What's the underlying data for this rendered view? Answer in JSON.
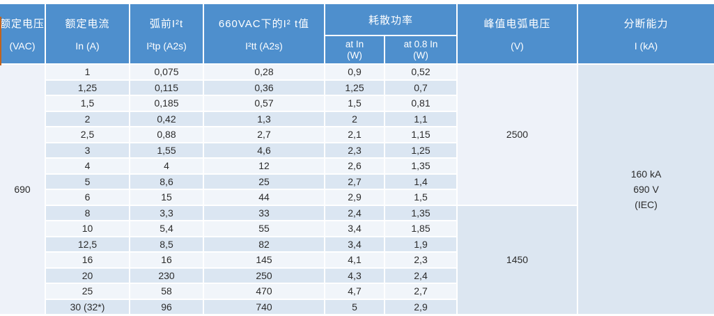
{
  "table": {
    "header": {
      "voltage": {
        "l1": "额定电压",
        "l2": "(VAC)"
      },
      "current": {
        "l1": "额定电流",
        "l2": "In (A)"
      },
      "prearc": {
        "l1": "弧前I²t",
        "l2": "I²tp (A2s)"
      },
      "total_i2t": {
        "l1": "660VAC下的I² t值",
        "l2": "I²tt (A2s)"
      },
      "power": {
        "title": "耗散功率",
        "sub1_l1": "at In",
        "sub1_l2": "(W)",
        "sub2_l1": "at 0.8 In",
        "sub2_l2": "(W)"
      },
      "peak": {
        "l1": "峰值电弧电压",
        "l2": "(V)"
      },
      "breaking": {
        "l1": "分断能力",
        "l2": "I (kA)"
      }
    },
    "merged": {
      "rated_voltage": "690",
      "peak_arc_voltage_group1": "2500",
      "peak_arc_voltage_group2": "1450",
      "breaking_l1": "160 kA",
      "breaking_l2": "690 V",
      "breaking_l3": "(IEC)"
    },
    "rows": [
      {
        "in": "1",
        "i2tp": "0,075",
        "i2tt": "0,28",
        "p_in": "0,9",
        "p_08": "0,52"
      },
      {
        "in": "1,25",
        "i2tp": "0,115",
        "i2tt": "0,36",
        "p_in": "1,25",
        "p_08": "0,7"
      },
      {
        "in": "1,5",
        "i2tp": "0,185",
        "i2tt": "0,57",
        "p_in": "1,5",
        "p_08": "0,81"
      },
      {
        "in": "2",
        "i2tp": "0,42",
        "i2tt": "1,3",
        "p_in": "2",
        "p_08": "1,1"
      },
      {
        "in": "2,5",
        "i2tp": "0,88",
        "i2tt": "2,7",
        "p_in": "2,1",
        "p_08": "1,15"
      },
      {
        "in": "3",
        "i2tp": "1,55",
        "i2tt": "4,6",
        "p_in": "2,3",
        "p_08": "1,25"
      },
      {
        "in": "4",
        "i2tp": "4",
        "i2tt": "12",
        "p_in": "2,6",
        "p_08": "1,35"
      },
      {
        "in": "5",
        "i2tp": "8,6",
        "i2tt": "25",
        "p_in": "2,7",
        "p_08": "1,4"
      },
      {
        "in": "6",
        "i2tp": "15",
        "i2tt": "44",
        "p_in": "2,9",
        "p_08": "1,5"
      },
      {
        "in": "8",
        "i2tp": "3,3",
        "i2tt": "33",
        "p_in": "2,4",
        "p_08": "1,35"
      },
      {
        "in": "10",
        "i2tp": "5,4",
        "i2tt": "55",
        "p_in": "3,4",
        "p_08": "1,85"
      },
      {
        "in": "12,5",
        "i2tp": "8,5",
        "i2tt": "82",
        "p_in": "3,4",
        "p_08": "1,9"
      },
      {
        "in": "16",
        "i2tp": "16",
        "i2tt": "145",
        "p_in": "4,1",
        "p_08": "2,3"
      },
      {
        "in": "20",
        "i2tp": "230",
        "i2tt": "250",
        "p_in": "4,3",
        "p_08": "2,4"
      },
      {
        "in": "25",
        "i2tp": "58",
        "i2tt": "470",
        "p_in": "4,7",
        "p_08": "2,7"
      },
      {
        "in": "30 (32*)",
        "i2tp": "96",
        "i2tt": "740",
        "p_in": "5",
        "p_08": "2,9"
      }
    ]
  },
  "colors": {
    "header_blue": "#4e8fcd",
    "row_light": "#f1f5fa",
    "row_blue": "#dbe6f2",
    "merged_light": "#eef2f9",
    "merged_blue": "#dce6f1",
    "edge_marker_orange": "#c0631f",
    "text_dark": "#2b2b2b"
  }
}
